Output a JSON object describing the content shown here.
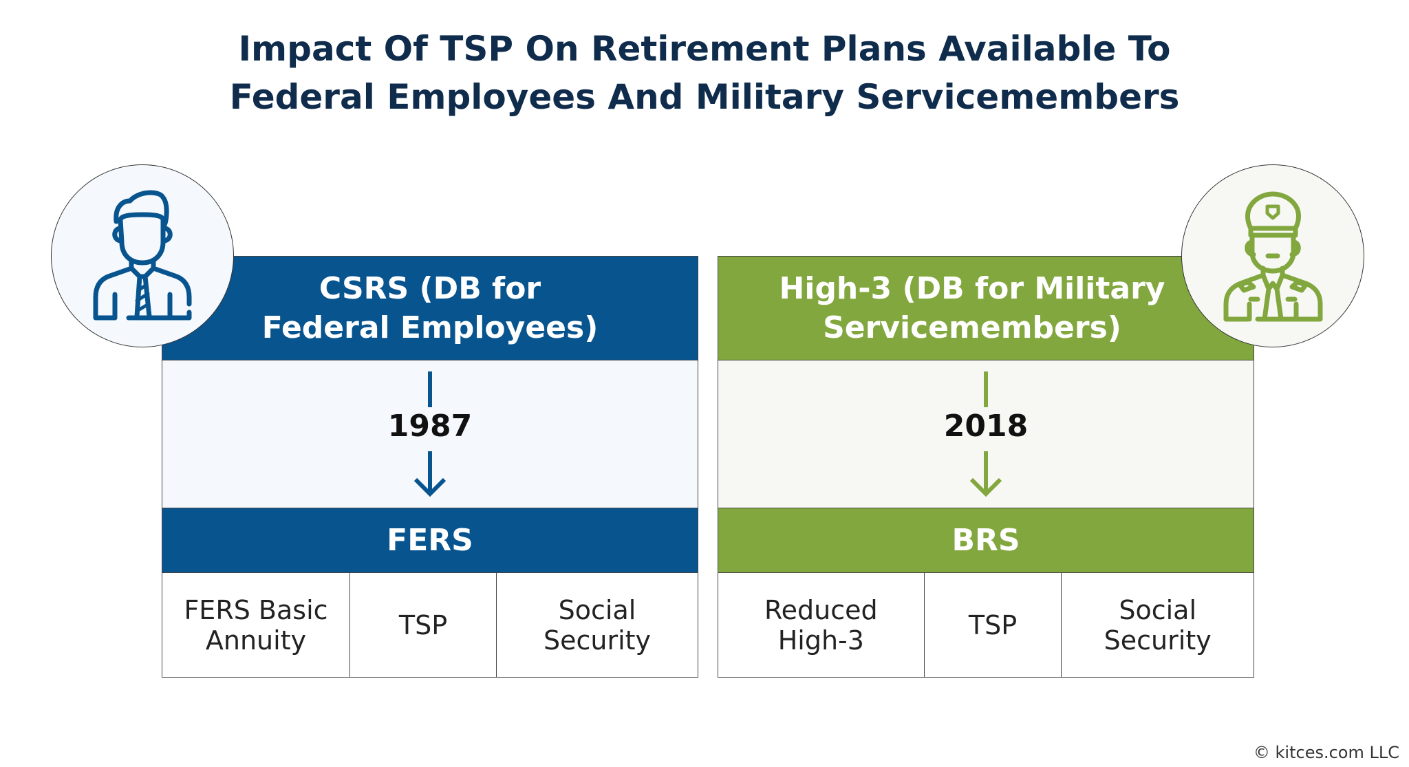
{
  "title": {
    "line1": "Impact Of TSP On Retirement Plans Available To",
    "line2": "Federal Employees And Military Servicemembers"
  },
  "colors": {
    "blue": "#08548f",
    "green": "#82a73e",
    "title": "#0f2c4c"
  },
  "federal": {
    "icon": "businessman-icon",
    "header_line1": "CSRS (DB for",
    "header_line2": "Federal Employees)",
    "year": "1987",
    "new_plan": "FERS",
    "components": [
      "FERS Basic Annuity",
      "TSP",
      "Social Security"
    ]
  },
  "military": {
    "icon": "soldier-icon",
    "header_line1": "High-3 (DB for Military",
    "header_line2": "Servicemembers)",
    "year": "2018",
    "new_plan": "BRS",
    "components": [
      "Reduced High-3",
      "TSP",
      "Social Security"
    ]
  },
  "copyright": "© kitces.com LLC"
}
